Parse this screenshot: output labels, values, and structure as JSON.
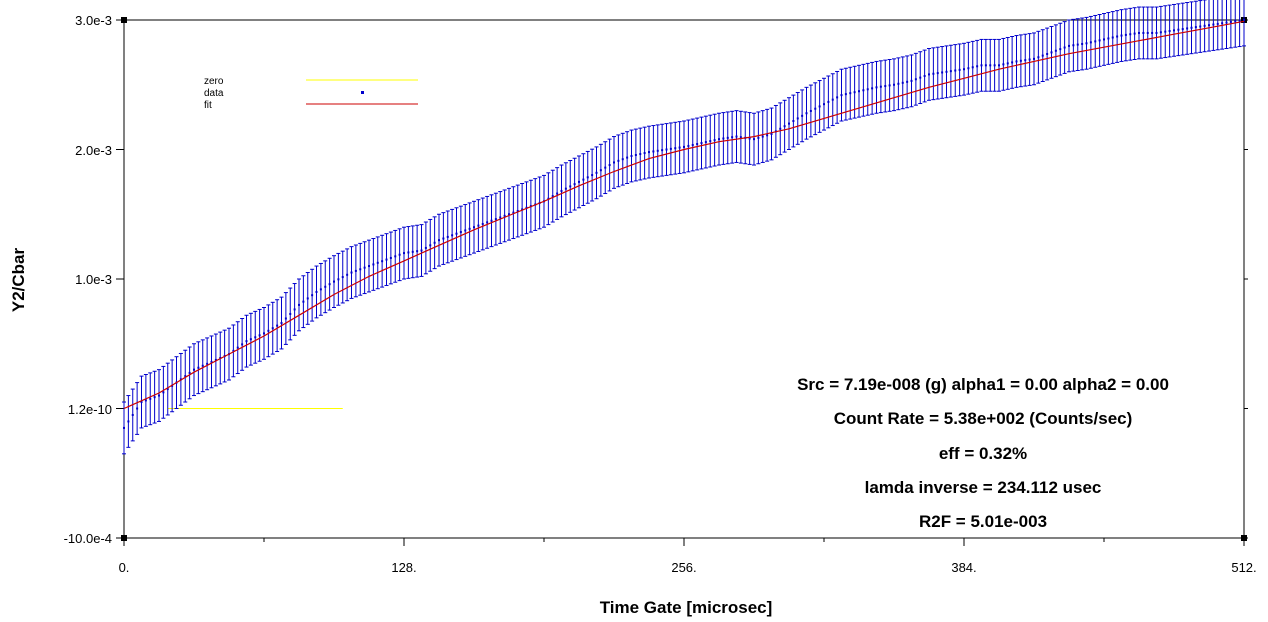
{
  "chart_data": {
    "type": "line",
    "title": "",
    "xlabel": "Time Gate [microsec]",
    "ylabel": "Y2/Cbar",
    "x_ticks": [
      "0.",
      "128.",
      "256.",
      "384.",
      "512."
    ],
    "x_tick_values": [
      0,
      128,
      256,
      384,
      512
    ],
    "xlim": [
      0,
      512
    ],
    "y_ticks": [
      "-10.0e-4",
      "1.2e-10",
      "1.0e-3",
      "2.0e-3",
      "3.0e-3"
    ],
    "y_tick_values": [
      -0.001,
      0.0,
      0.001,
      0.002,
      0.003
    ],
    "ylim": [
      -0.001,
      0.003
    ],
    "grid": false,
    "legend_position": "top-left",
    "legend": [
      "zero",
      "data",
      "fit"
    ],
    "colors": {
      "zero": "#ffff00",
      "data": "#0000cc",
      "fit": "#cc0000",
      "axis": "#000000"
    },
    "series": [
      {
        "name": "zero",
        "style": "line",
        "x": [
          20,
          100
        ],
        "y": [
          0,
          0
        ]
      },
      {
        "name": "data",
        "style": "points-with-errorbars",
        "x": [
          0,
          8,
          16,
          24,
          32,
          40,
          48,
          56,
          64,
          72,
          80,
          88,
          96,
          104,
          112,
          120,
          128,
          136,
          144,
          152,
          160,
          168,
          176,
          184,
          192,
          200,
          208,
          216,
          224,
          232,
          240,
          248,
          256,
          264,
          272,
          280,
          288,
          296,
          304,
          312,
          320,
          328,
          336,
          344,
          352,
          360,
          368,
          376,
          384,
          392,
          400,
          408,
          416,
          424,
          432,
          440,
          448,
          456,
          464,
          472,
          480,
          488,
          496,
          504,
          512
        ],
        "y": [
          -0.00015,
          5e-05,
          0.0001,
          0.0002,
          0.0003,
          0.00036,
          0.00042,
          0.00052,
          0.00058,
          0.00066,
          0.0008,
          0.0009,
          0.00098,
          0.00105,
          0.0011,
          0.00115,
          0.0012,
          0.00122,
          0.0013,
          0.00135,
          0.0014,
          0.00145,
          0.0015,
          0.00155,
          0.0016,
          0.00168,
          0.00175,
          0.00182,
          0.0019,
          0.00195,
          0.00198,
          0.002,
          0.00202,
          0.00205,
          0.00208,
          0.0021,
          0.00208,
          0.00212,
          0.0022,
          0.00228,
          0.00235,
          0.00242,
          0.00245,
          0.00248,
          0.0025,
          0.00253,
          0.00258,
          0.0026,
          0.00262,
          0.00265,
          0.00265,
          0.00268,
          0.0027,
          0.00275,
          0.0028,
          0.00282,
          0.00285,
          0.00288,
          0.0029,
          0.0029,
          0.00292,
          0.00294,
          0.00296,
          0.00298,
          0.003
        ],
        "error": 0.0002
      },
      {
        "name": "fit",
        "style": "line",
        "x": [
          0,
          16,
          32,
          48,
          64,
          80,
          96,
          112,
          128,
          144,
          160,
          176,
          192,
          208,
          224,
          240,
          256,
          272,
          288,
          304,
          320,
          336,
          352,
          368,
          384,
          400,
          416,
          432,
          448,
          464,
          480,
          496,
          512
        ],
        "y": [
          0.0,
          0.00012,
          0.00028,
          0.00042,
          0.00056,
          0.00072,
          0.00088,
          0.00102,
          0.00114,
          0.00126,
          0.00138,
          0.00149,
          0.0016,
          0.00172,
          0.00183,
          0.00193,
          0.002,
          0.00206,
          0.0021,
          0.00216,
          0.00224,
          0.00232,
          0.0024,
          0.00248,
          0.00255,
          0.00262,
          0.00268,
          0.00274,
          0.00279,
          0.00284,
          0.00289,
          0.00294,
          0.00299
        ]
      }
    ],
    "annotations": [
      "Src =  7.19e-008 (g)  alpha1 =  0.00  alpha2 =  0.00",
      "Count Rate = 5.38e+002 (Counts/sec)",
      "eff = 0.32%",
      "lamda inverse = 234.112 usec",
      "R2F = 5.01e-003"
    ]
  }
}
